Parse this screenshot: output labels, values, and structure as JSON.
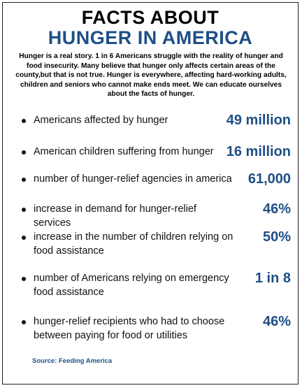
{
  "title": {
    "line1": "FACTS ABOUT",
    "line2": "HUNGER IN AMERICA"
  },
  "intro": "Hunger is a real story. 1 in 6 Americans struggle with the reality of hunger and food insecurity. Many believe that hunger only affects certain areas of the county,but that is not true. Hunger is everywhere, affecting hard-working adults, children and seniors who cannot make ends meet. We can educate ourselves about the facts of hunger.",
  "facts": [
    {
      "label": "Americans affected by hunger",
      "value": "49 million"
    },
    {
      "label": "American children suffering from hunger",
      "value": "16 million"
    },
    {
      "label": "number of hunger-relief agencies in america",
      "value": "61,000"
    },
    {
      "label": "increase in demand for hunger-relief services",
      "value": "46%"
    },
    {
      "label": "increase in the number of children relying on food assistance",
      "value": "50%"
    },
    {
      "label": "number of Americans relying on emergency food assistance",
      "value": "1 in 8"
    },
    {
      "label": "hunger-relief recipients who had to choose between paying for food or utilities",
      "value": "46%"
    }
  ],
  "source": "Source: Feeding America",
  "colors": {
    "accent": "#1e4f86",
    "text": "#111111"
  }
}
